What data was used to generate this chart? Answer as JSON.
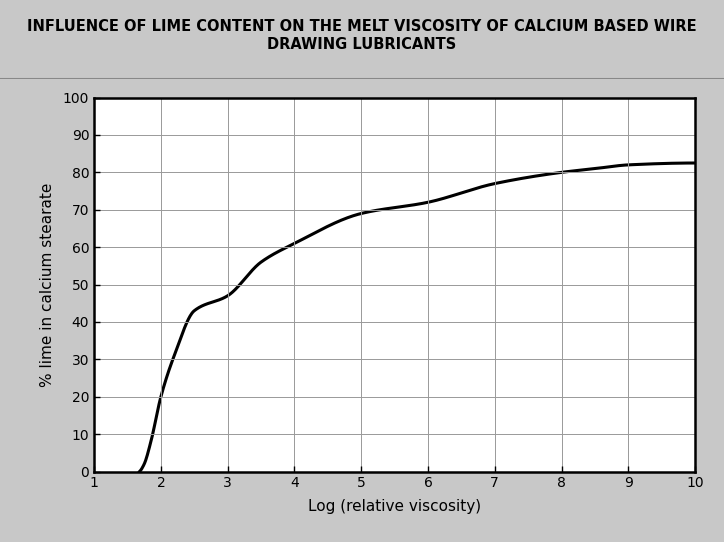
{
  "title_line1": "INFLUENCE OF LIME CONTENT ON THE MELT VISCOSITY OF CALCIUM BASED WIRE",
  "title_line2": "DRAWING LUBRICANTS",
  "xlabel": "Log (relative viscosity)",
  "ylabel": "% lime in calcium stearate",
  "xlim": [
    1,
    10
  ],
  "ylim": [
    0,
    100
  ],
  "xticks": [
    1,
    2,
    3,
    4,
    5,
    6,
    7,
    8,
    9,
    10
  ],
  "yticks": [
    0,
    10,
    20,
    30,
    40,
    50,
    60,
    70,
    80,
    90,
    100
  ],
  "curve_x": [
    1.68,
    1.75,
    1.85,
    2.0,
    2.2,
    2.5,
    3.0,
    3.5,
    4.0,
    5.0,
    6.0,
    7.0,
    8.0,
    8.5,
    9.0,
    10.0
  ],
  "curve_y": [
    0,
    2,
    8,
    20,
    31,
    43,
    47,
    56,
    61,
    69,
    72,
    77,
    80,
    81,
    82,
    82.5
  ],
  "title_bg_color": "#d3d3d3",
  "title_border_color": "#888888",
  "plot_bg_color": "#ffffff",
  "grid_color": "#999999",
  "curve_color": "#000000",
  "curve_linewidth": 2.2,
  "title_fontsize": 10.5,
  "label_fontsize": 11,
  "tick_fontsize": 10,
  "fig_bg_color": "#c8c8c8"
}
